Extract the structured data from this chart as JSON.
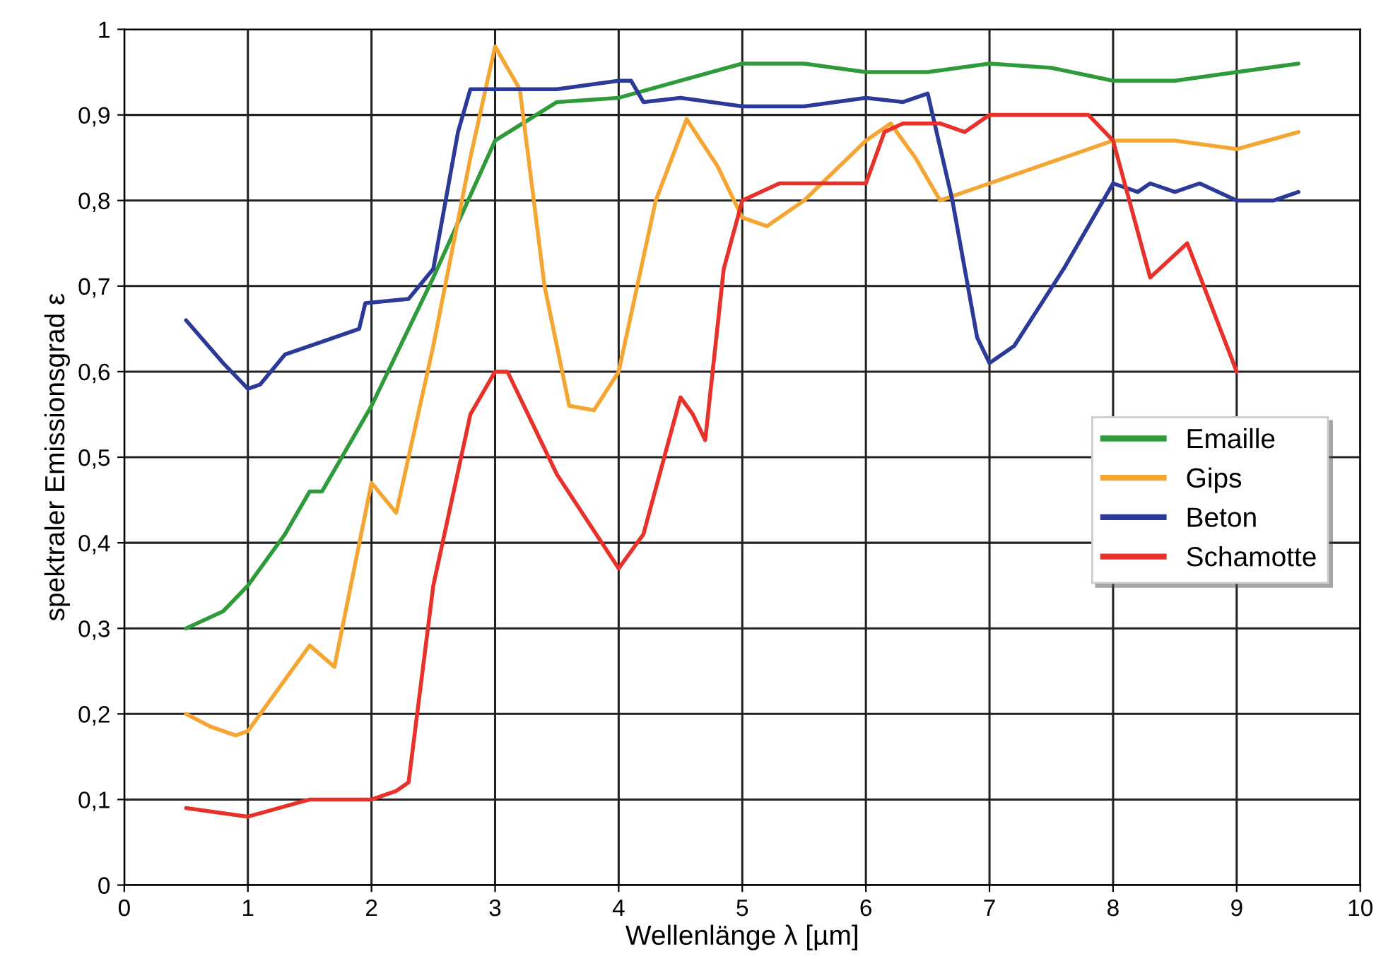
{
  "chart_data": {
    "type": "line",
    "xlabel": "Wellenlänge λ [µm]",
    "ylabel": "spektraler Emissionsgrad ε",
    "xlim": [
      0,
      10
    ],
    "ylim": [
      0,
      1
    ],
    "xticks": [
      0,
      1,
      2,
      3,
      4,
      5,
      6,
      7,
      8,
      9,
      10
    ],
    "yticks": [
      0,
      {
        "value": 0.1,
        "label": "0,1"
      },
      {
        "value": 0.2,
        "label": "0,2"
      },
      {
        "value": 0.3,
        "label": "0,3"
      },
      {
        "value": 0.4,
        "label": "0,4"
      },
      {
        "value": 0.5,
        "label": "0,5"
      },
      {
        "value": 0.6,
        "label": "0,6"
      },
      {
        "value": 0.7,
        "label": "0,7"
      },
      {
        "value": 0.8,
        "label": "0,8"
      },
      {
        "value": 0.9,
        "label": "0,9"
      },
      1
    ],
    "grid": true,
    "legend": "right",
    "marker": "none",
    "line_style": "solid",
    "series": [
      {
        "name": "Emaille",
        "color": "#2e9a3a",
        "x": [
          0.5,
          0.8,
          1,
          1.3,
          1.5,
          1.6,
          2,
          2.5,
          3,
          3.5,
          4,
          4.5,
          5,
          5.5,
          6,
          6.5,
          7,
          7.5,
          8,
          8.5,
          9,
          9.5
        ],
        "values": [
          0.3,
          0.32,
          0.35,
          0.41,
          0.46,
          0.46,
          0.56,
          0.71,
          0.87,
          0.915,
          0.92,
          0.94,
          0.96,
          0.96,
          0.95,
          0.95,
          0.96,
          0.955,
          0.94,
          0.94,
          0.95,
          0.96
        ]
      },
      {
        "name": "Gips",
        "color": "#f5a531",
        "x": [
          0.5,
          0.7,
          0.9,
          1,
          1.2,
          1.5,
          1.7,
          2,
          2.2,
          2.5,
          2.8,
          3,
          3.2,
          3.4,
          3.6,
          3.8,
          4,
          4.3,
          4.55,
          4.8,
          5,
          5.2,
          5.5,
          6,
          6.2,
          6.4,
          6.6,
          7,
          8,
          8.5,
          9,
          9.5
        ],
        "values": [
          0.2,
          0.185,
          0.175,
          0.18,
          0.22,
          0.28,
          0.255,
          0.47,
          0.435,
          0.63,
          0.85,
          0.98,
          0.93,
          0.7,
          0.56,
          0.555,
          0.6,
          0.8,
          0.895,
          0.84,
          0.78,
          0.77,
          0.8,
          0.87,
          0.89,
          0.85,
          0.8,
          0.82,
          0.87,
          0.87,
          0.86,
          0.88
        ]
      },
      {
        "name": "Beton",
        "color": "#2b3a98",
        "x": [
          0.5,
          0.8,
          1,
          1.1,
          1.3,
          1.6,
          1.9,
          1.95,
          2.3,
          2.5,
          2.7,
          2.8,
          3,
          3.5,
          4,
          4.1,
          4.2,
          4.5,
          5,
          5.5,
          6,
          6.3,
          6.4,
          6.5,
          6.7,
          6.9,
          7,
          7.2,
          7.6,
          8,
          8.2,
          8.3,
          8.5,
          8.7,
          9,
          9.3,
          9.5
        ],
        "values": [
          0.66,
          0.61,
          0.58,
          0.585,
          0.62,
          0.635,
          0.65,
          0.68,
          0.685,
          0.72,
          0.88,
          0.93,
          0.93,
          0.93,
          0.94,
          0.94,
          0.915,
          0.92,
          0.91,
          0.91,
          0.92,
          0.915,
          0.92,
          0.925,
          0.8,
          0.64,
          0.61,
          0.63,
          0.72,
          0.82,
          0.81,
          0.82,
          0.81,
          0.82,
          0.8,
          0.8,
          0.81
        ]
      },
      {
        "name": "Schamotte",
        "color": "#e8312a",
        "x": [
          0.5,
          1,
          1.5,
          1.8,
          2,
          2.2,
          2.3,
          2.5,
          2.8,
          3,
          3.1,
          3.5,
          4,
          4.2,
          4.5,
          4.6,
          4.7,
          4.85,
          5,
          5.3,
          5.7,
          6,
          6.15,
          6.3,
          6.6,
          6.8,
          7,
          7.5,
          7.8,
          8,
          8.3,
          8.6,
          9
        ],
        "values": [
          0.09,
          0.08,
          0.1,
          0.1,
          0.1,
          0.11,
          0.12,
          0.35,
          0.55,
          0.6,
          0.6,
          0.48,
          0.37,
          0.41,
          0.57,
          0.55,
          0.52,
          0.72,
          0.8,
          0.82,
          0.82,
          0.82,
          0.88,
          0.89,
          0.89,
          0.88,
          0.9,
          0.9,
          0.9,
          0.87,
          0.71,
          0.75,
          0.6
        ]
      }
    ]
  }
}
